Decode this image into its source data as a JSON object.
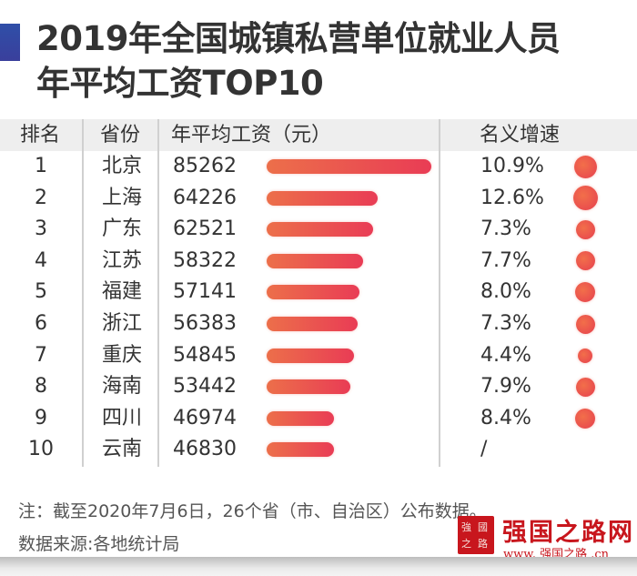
{
  "title": {
    "line1": "2019年全国城镇私营单位就业人员",
    "line2": "年平均工资TOP10",
    "accent_color": "#3346a2"
  },
  "columns": {
    "rank": "排名",
    "province": "省份",
    "wage": "年平均工资（元）",
    "growth": "名义增速"
  },
  "rows": [
    {
      "rank": "1",
      "province": "北京",
      "wage": "85262",
      "growth": "10.9%"
    },
    {
      "rank": "2",
      "province": "上海",
      "wage": "64226",
      "growth": "12.6%"
    },
    {
      "rank": "3",
      "province": "广东",
      "wage": "62521",
      "growth": "7.3%"
    },
    {
      "rank": "4",
      "province": "江苏",
      "wage": "58322",
      "growth": "7.7%"
    },
    {
      "rank": "5",
      "province": "福建",
      "wage": "57141",
      "growth": "8.0%"
    },
    {
      "rank": "6",
      "province": "浙江",
      "wage": "56383",
      "growth": "7.3%"
    },
    {
      "rank": "7",
      "province": "重庆",
      "wage": "54845",
      "growth": "4.4%"
    },
    {
      "rank": "8",
      "province": "海南",
      "wage": "53442",
      "growth": "7.9%"
    },
    {
      "rank": "9",
      "province": "四川",
      "wage": "46974",
      "growth": "8.4%"
    },
    {
      "rank": "10",
      "province": "云南",
      "wage": "46830",
      "growth": "/"
    }
  ],
  "notes": {
    "line1": "注：截至2020年7月6日，26个省（市、自治区）公布数据。",
    "line2": "数据来源:各地统计局"
  },
  "watermark": {
    "seal_text": "強國之路",
    "title": "强国之路网",
    "url": "www. 强国之路 .cn"
  },
  "colors": {
    "bar_start": "#ec6f4a",
    "bar_end": "#e93c55",
    "header_bg": "#eeeeee",
    "watermark_red": "#c8161d"
  },
  "chart_data": {
    "type": "table",
    "title": "2019年全国城镇私营单位就业人员年平均工资TOP10",
    "categories": [
      "北京",
      "上海",
      "广东",
      "江苏",
      "福建",
      "浙江",
      "重庆",
      "海南",
      "四川",
      "云南"
    ],
    "series": [
      {
        "name": "年平均工资（元）",
        "chart": "bar",
        "values": [
          85262,
          64226,
          62521,
          58322,
          57141,
          56383,
          54845,
          53442,
          46974,
          46830
        ]
      },
      {
        "name": "名义增速",
        "chart": "bubble",
        "unit": "%",
        "values": [
          10.9,
          12.6,
          7.3,
          7.7,
          8.0,
          7.3,
          4.4,
          7.9,
          8.4,
          null
        ]
      }
    ],
    "notes": [
      "注：截至2020年7月6日，26个省（市、自治区）公布数据。",
      "数据来源:各地统计局"
    ]
  }
}
